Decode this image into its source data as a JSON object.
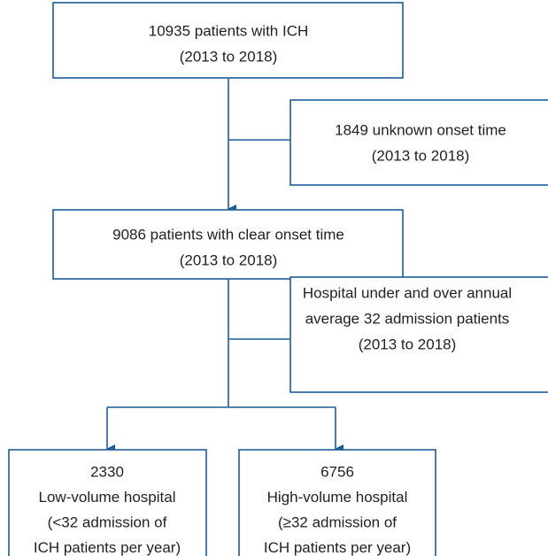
{
  "nodes": [
    {
      "lines": [
        "10935 patients with ICH",
        "(2013 to 2018)"
      ]
    },
    {
      "lines": [
        "1849 unknown onset time",
        "(2013 to 2018)"
      ]
    },
    {
      "lines": [
        "9086 patients with clear onset time",
        "(2013 to 2018)"
      ]
    },
    {
      "lines": [
        "Hospital under and over annual",
        "average 32 admission patients",
        "(2013 to 2018)"
      ]
    },
    {
      "lines": [
        "2330",
        "Low-volume hospital",
        "(<32 admission of",
        "ICH patients per year)"
      ]
    },
    {
      "lines": [
        "6756",
        "High-volume hospital",
        "(≥32 admission of",
        "ICH patients per year)"
      ]
    }
  ]
}
